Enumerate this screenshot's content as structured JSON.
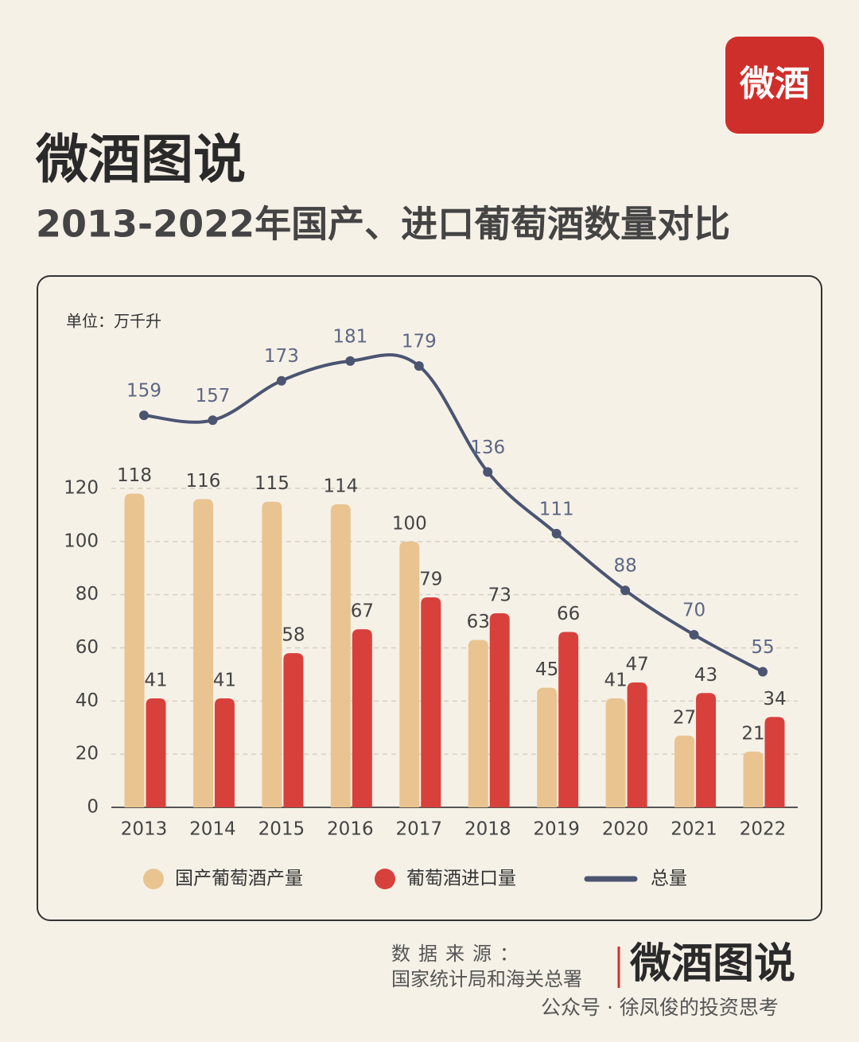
{
  "brand": "微酒图说",
  "logo": "微酒",
  "chart_data": {
    "type": "bar",
    "title": "2013-2022年国产、进口葡萄酒数量对比",
    "unit": "单位：万千升",
    "categories": [
      "2013",
      "2014",
      "2015",
      "2016",
      "2017",
      "2018",
      "2019",
      "2020",
      "2021",
      "2022"
    ],
    "series": [
      {
        "name": "国产葡萄酒产量",
        "color": "#e9c491",
        "values": [
          118,
          116,
          115,
          114,
          100,
          63,
          45,
          41,
          27,
          21
        ]
      },
      {
        "name": "葡萄酒进口量",
        "color": "#d8403c",
        "values": [
          41,
          41,
          58,
          67,
          79,
          73,
          66,
          47,
          43,
          34
        ]
      },
      {
        "name": "总量",
        "type": "line",
        "axis": "y2",
        "color": "#4b5572",
        "values": [
          159,
          157,
          173,
          181,
          179,
          136,
          111,
          88,
          70,
          55
        ]
      }
    ],
    "ylim": [
      0,
      120
    ],
    "yticks": [
      0,
      20,
      40,
      60,
      80,
      100,
      120
    ],
    "y2lim": [
      0,
      200
    ],
    "grid": true,
    "legend": "bottom"
  },
  "footer": {
    "source_label": "数据来源：",
    "source": "国家统计局和海关总署",
    "brand": "微酒图说",
    "account": "公众号 · 徐凤俊的投资思考"
  }
}
